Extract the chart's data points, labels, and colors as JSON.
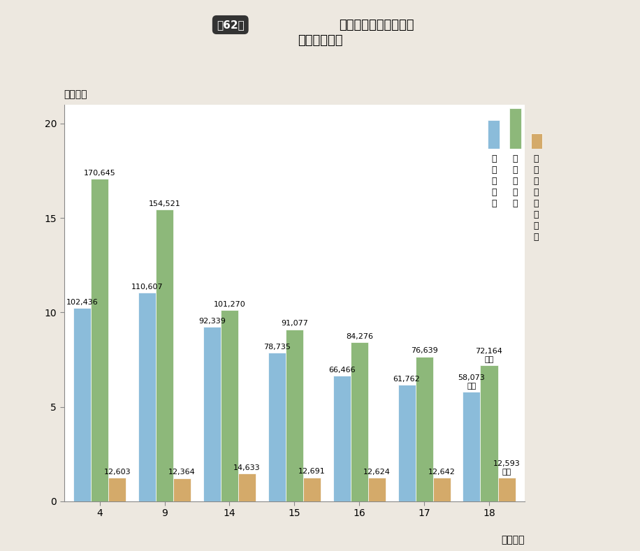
{
  "title_box": "第62図",
  "title_main": "普通建設事業費の推移",
  "title_sub": "その１　純計",
  "ylabel": "（兆円）",
  "xlabel": "（年度）",
  "categories": [
    4,
    9,
    14,
    15,
    16,
    17,
    18
  ],
  "series": {
    "hosho": {
      "label_lines": [
        "補",
        "助",
        "事",
        "業",
        "費"
      ],
      "color": "#8bbcda",
      "values_oku": [
        102436,
        110607,
        92339,
        78735,
        66466,
        61762,
        58073
      ]
    },
    "tandoku": {
      "label_lines": [
        "単",
        "独",
        "事",
        "業",
        "費"
      ],
      "color": "#8db87a",
      "values_oku": [
        170645,
        154521,
        101270,
        91077,
        84276,
        76639,
        72164
      ]
    },
    "chokkatsu": {
      "label_lines": [
        "国",
        "直",
        "轄",
        "事",
        "業",
        "負",
        "担",
        "金"
      ],
      "color": "#d4aa6a",
      "values_oku": [
        12603,
        12364,
        14633,
        12691,
        12624,
        12642,
        12593
      ]
    }
  },
  "annotations": {
    "hosho": [
      "102,436",
      "110,607",
      "92,339",
      "78,735",
      "66,466",
      "61,762",
      "58,073\n億円"
    ],
    "tandoku": [
      "170,645",
      "154,521",
      "101,270",
      "91,077",
      "84,276",
      "76,639",
      "72,164\n億円"
    ],
    "chokkatsu": [
      "12,603",
      "12,364",
      "14,633",
      "12,691",
      "12,624",
      "12,642",
      "12,593\n億円"
    ]
  },
  "ylim": [
    0,
    21
  ],
  "yticks": [
    0,
    5,
    10,
    15,
    20
  ],
  "bar_width": 0.27,
  "background_color": "#ede8e0",
  "plot_bg_color": "#ffffff",
  "font_size_annotation": 8,
  "font_size_axis": 10,
  "font_size_title": 13,
  "font_size_legend": 9
}
